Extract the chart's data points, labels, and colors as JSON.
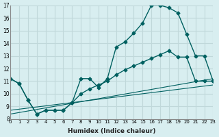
{
  "xlabel": "Humidex (Indice chaleur)",
  "bg_color": "#d8eef0",
  "grid_color": "#c0d8da",
  "line_color": "#006060",
  "xlim": [
    0,
    23
  ],
  "ylim": [
    8,
    17
  ],
  "xtick_labels": [
    "0",
    "1",
    "2",
    "3",
    "4",
    "5",
    "6",
    "7",
    "8",
    "9",
    "10",
    "11",
    "12",
    "13",
    "14",
    "15",
    "16",
    "17",
    "18",
    "19",
    "20",
    "21",
    "22",
    "23"
  ],
  "ytick_labels": [
    "8",
    "9",
    "10",
    "11",
    "12",
    "13",
    "14",
    "15",
    "16",
    "17"
  ],
  "curve1_x": [
    0,
    1,
    2,
    3,
    4,
    5,
    6,
    7,
    8,
    9,
    10,
    11,
    12,
    13,
    14,
    15,
    16,
    17,
    18,
    19,
    20,
    21,
    22,
    23
  ],
  "curve1_y": [
    11.2,
    10.8,
    9.5,
    8.4,
    8.7,
    8.7,
    8.7,
    9.3,
    11.2,
    11.2,
    10.5,
    11.2,
    13.7,
    14.1,
    14.8,
    15.6,
    17.0,
    17.0,
    16.8,
    16.4,
    14.7,
    13.0,
    13.0,
    11.0
  ],
  "curve2_x": [
    0,
    1,
    2,
    3,
    4,
    5,
    6,
    7,
    8,
    9,
    10,
    11,
    12,
    13,
    14,
    15,
    16,
    17,
    18,
    19,
    20,
    21,
    22,
    23
  ],
  "curve2_y": [
    11.2,
    10.8,
    9.5,
    8.4,
    8.7,
    8.7,
    8.7,
    9.3,
    10.0,
    10.4,
    10.7,
    11.0,
    11.5,
    11.9,
    12.2,
    12.5,
    12.8,
    13.1,
    13.4,
    12.9,
    12.9,
    11.0,
    11.0,
    11.0
  ],
  "curve3_x": [
    0,
    23
  ],
  "curve3_y": [
    8.4,
    11.2
  ],
  "curve4_x": [
    0,
    23
  ],
  "curve4_y": [
    8.7,
    10.7
  ]
}
